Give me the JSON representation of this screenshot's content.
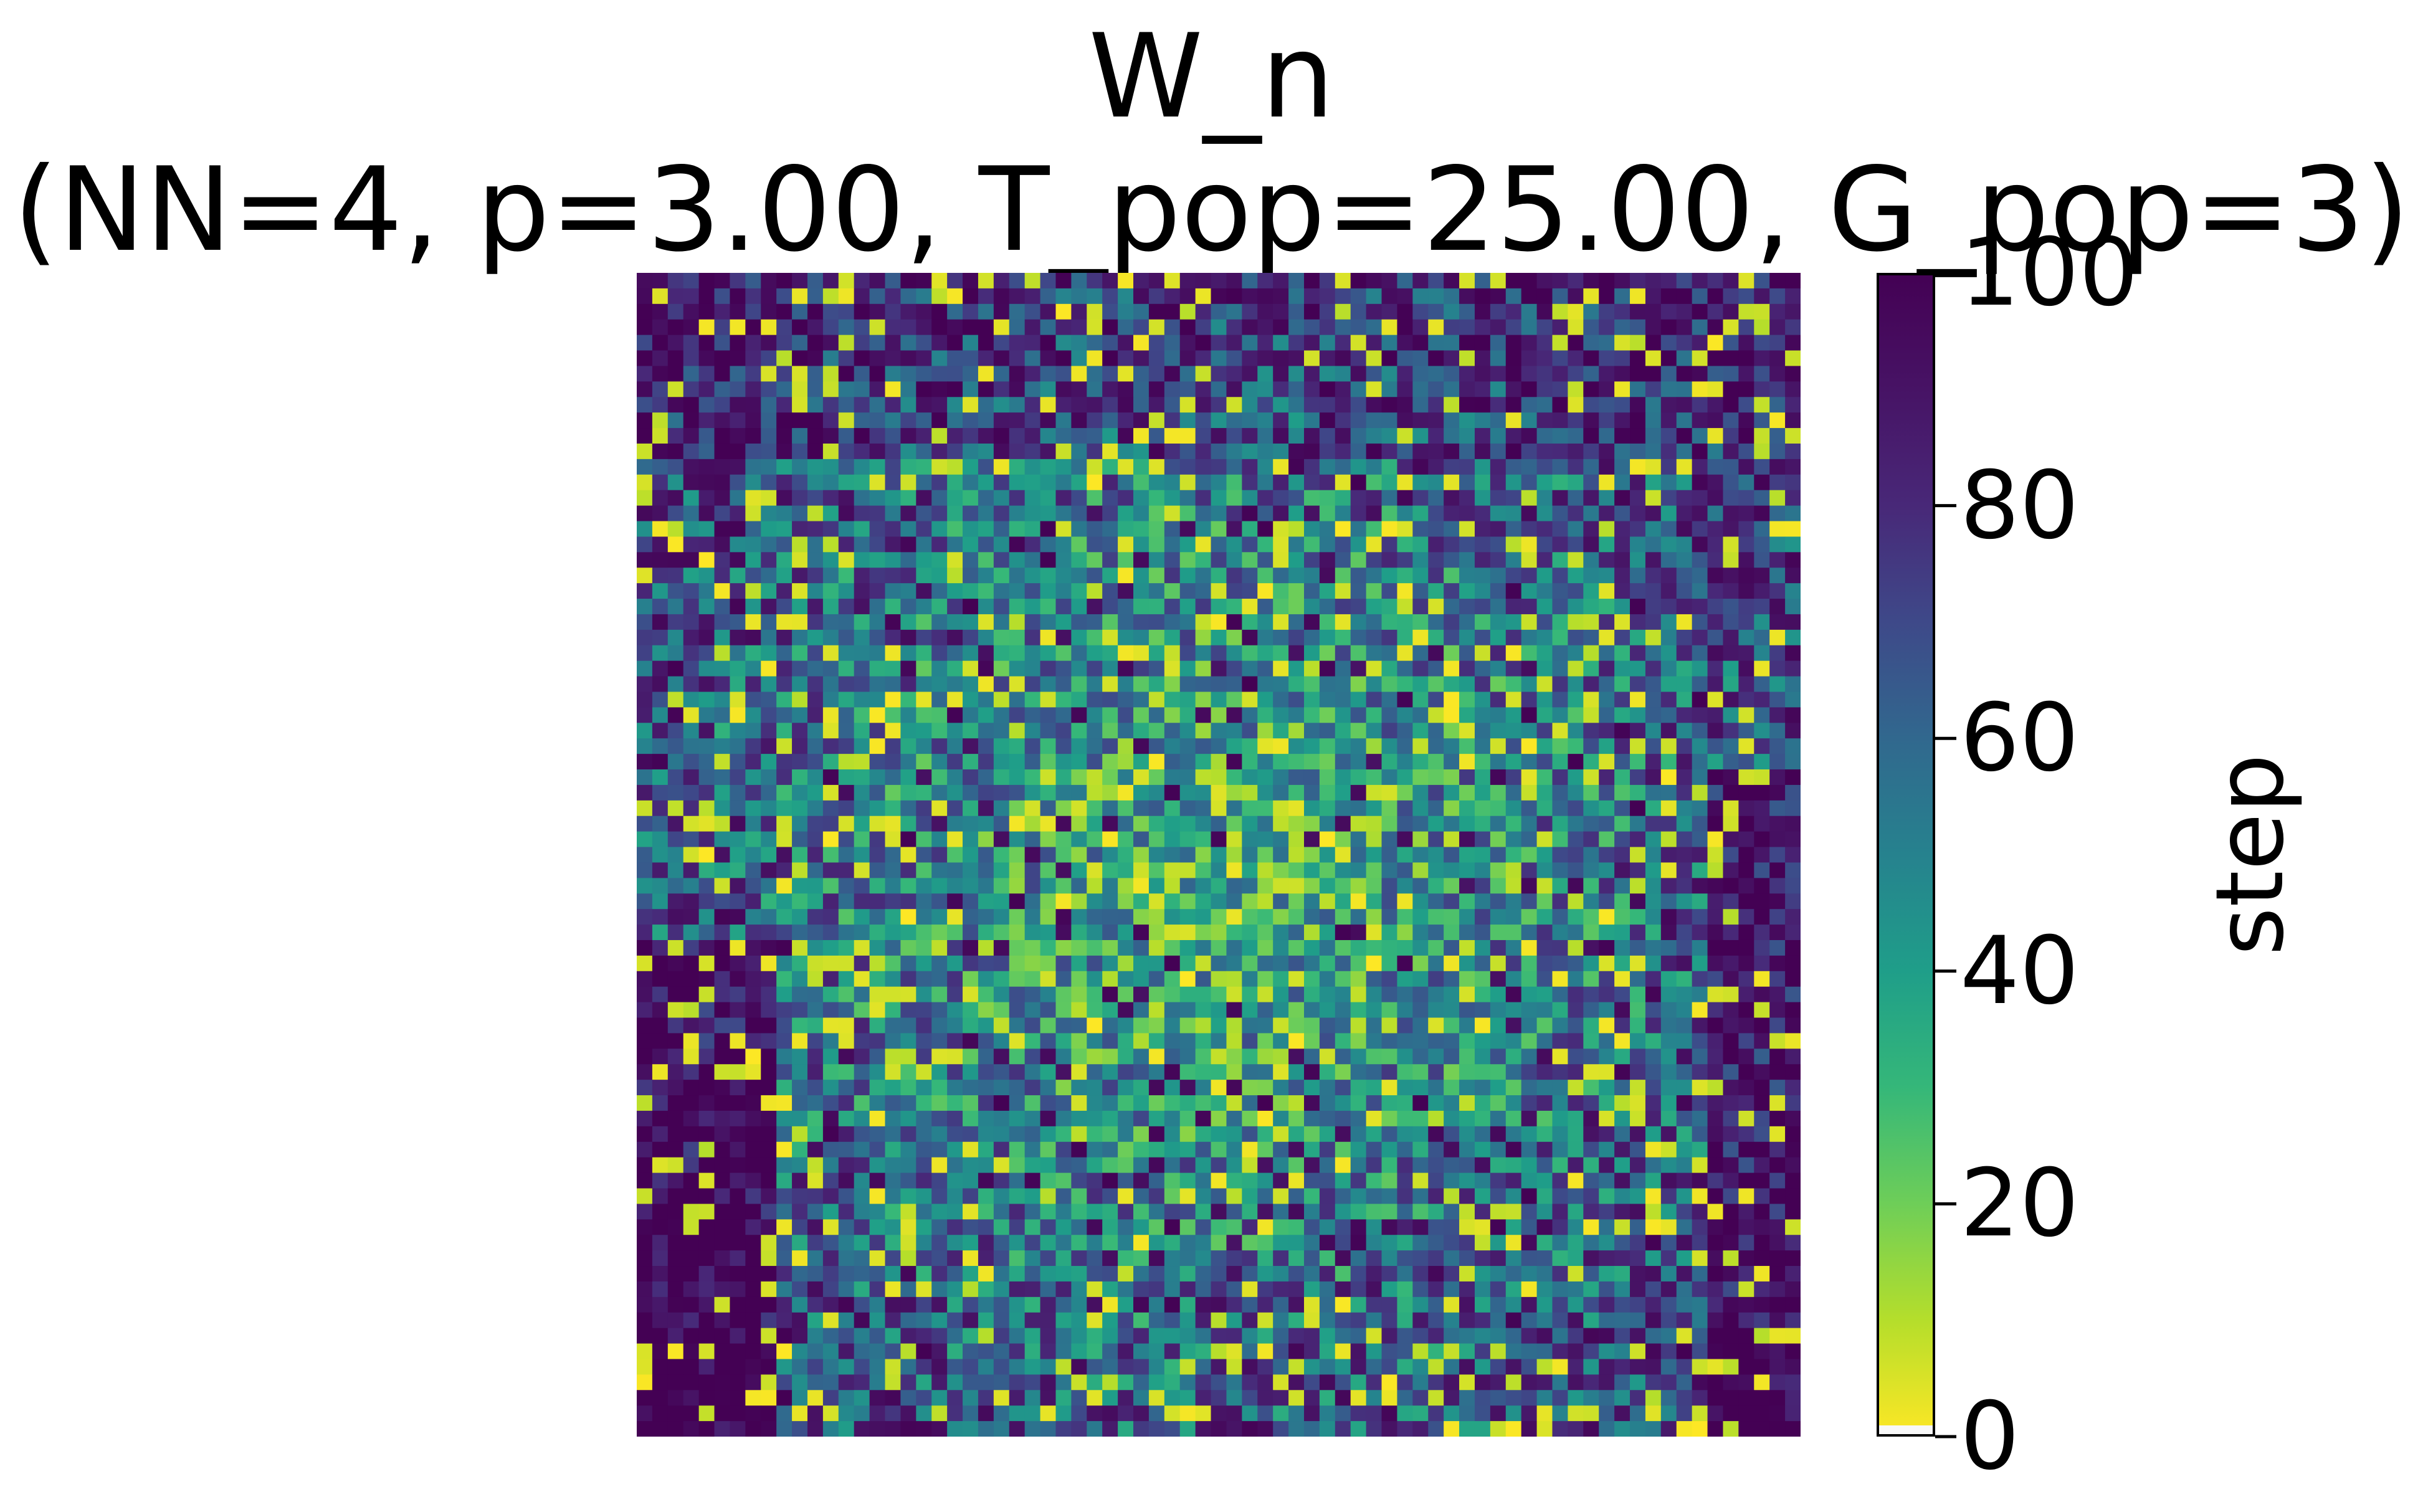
{
  "chart_data": {
    "type": "heatmap",
    "title_lines": [
      "W_n",
      "(NN=4, p=3.00, T_pop=25.00, G_pop=3)"
    ],
    "grid_size": 75,
    "colormap": "viridis_r",
    "value_range": [
      0,
      100
    ],
    "axes_visible": false,
    "colorbar": {
      "label": "step",
      "ticks": [
        "0",
        "20",
        "40",
        "60",
        "80",
        "100"
      ],
      "range": [
        0,
        100
      ],
      "placement": "right"
    },
    "texture": {
      "dark_regions": [
        "bottom-left",
        "left edge",
        "right edge",
        "top rows"
      ],
      "light_regions": [
        "center",
        "lower-center band"
      ]
    }
  }
}
